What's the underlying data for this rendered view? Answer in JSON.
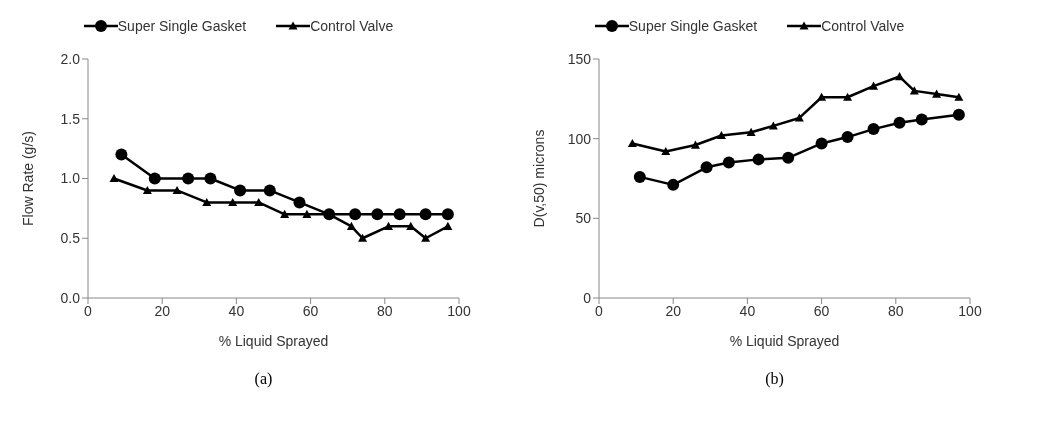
{
  "chart_data": [
    {
      "type": "line",
      "xlabel": "% Liquid Sprayed",
      "ylabel": "Flow Rate (g/s)",
      "xlim": [
        0,
        100
      ],
      "xticks": [
        0,
        20,
        40,
        60,
        80,
        100
      ],
      "ylim": [
        0,
        2
      ],
      "yticks": [
        {
          "value": 0,
          "label": "0.0"
        },
        {
          "value": 0.5,
          "label": "0.5"
        },
        {
          "value": 1,
          "label": "1.0"
        },
        {
          "value": 1.5,
          "label": "1.5"
        },
        {
          "value": 2,
          "label": "2.0"
        }
      ],
      "legend": "top",
      "grid": false,
      "annotations": [
        "(a)"
      ],
      "series": [
        {
          "name": "Super Single Gasket",
          "color": "#000000",
          "marker": "circle",
          "x": [
            9,
            18,
            27,
            33,
            41,
            49,
            57,
            65,
            72,
            78,
            84,
            91,
            97
          ],
          "values": [
            1.2,
            1.0,
            1.0,
            1.0,
            0.9,
            0.9,
            0.8,
            0.7,
            0.7,
            0.7,
            0.7,
            0.7,
            0.7
          ]
        },
        {
          "name": "Control Valve",
          "color": "#000000",
          "marker": "triangle",
          "x": [
            7,
            16,
            24,
            32,
            39,
            46,
            53,
            59,
            65,
            71,
            74,
            81,
            87,
            91,
            97
          ],
          "values": [
            1.0,
            0.9,
            0.9,
            0.8,
            0.8,
            0.8,
            0.7,
            0.7,
            0.7,
            0.6,
            0.5,
            0.6,
            0.6,
            0.5,
            0.6
          ]
        }
      ]
    },
    {
      "type": "line",
      "xlabel": "% Liquid Sprayed",
      "ylabel": "D(v,50) microns",
      "xlim": [
        0,
        100
      ],
      "xticks": [
        0,
        20,
        40,
        60,
        80,
        100
      ],
      "ylim": [
        0,
        150
      ],
      "yticks": [
        0,
        50,
        100,
        150
      ],
      "legend": "top",
      "grid": false,
      "annotations": [
        "(b)"
      ],
      "series": [
        {
          "name": "Super Single Gasket",
          "color": "#000000",
          "marker": "circle",
          "x": [
            11,
            20,
            29,
            35,
            43,
            51,
            60,
            67,
            74,
            81,
            87,
            97
          ],
          "values": [
            76,
            71,
            82,
            85,
            87,
            88,
            97,
            101,
            106,
            110,
            112,
            115
          ]
        },
        {
          "name": "Control Valve",
          "color": "#000000",
          "marker": "triangle",
          "x": [
            9,
            18,
            26,
            33,
            41,
            47,
            54,
            60,
            67,
            74,
            81,
            85,
            91,
            97
          ],
          "values": [
            97,
            92,
            96,
            102,
            104,
            108,
            113,
            126,
            126,
            133,
            139,
            130,
            128,
            126
          ]
        }
      ]
    }
  ]
}
